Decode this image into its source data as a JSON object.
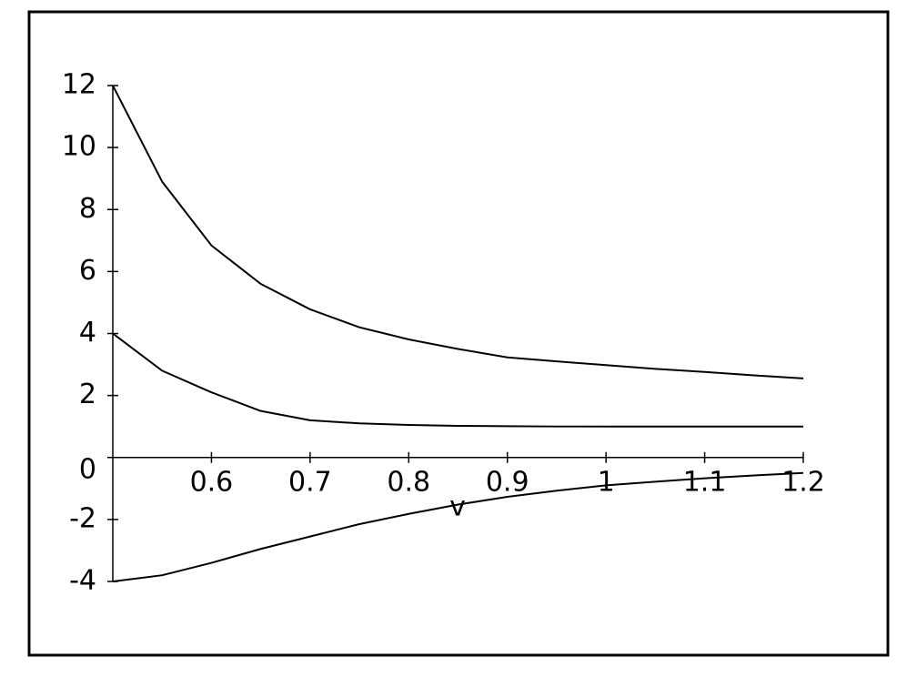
{
  "chart_data": {
    "type": "line",
    "xlabel": "v",
    "x": [
      0.5,
      0.55,
      0.6,
      0.65,
      0.7,
      0.75,
      0.8,
      0.85,
      0.9,
      0.95,
      1.0,
      1.05,
      1.1,
      1.15,
      1.2
    ],
    "series": [
      {
        "color": "#000000",
        "values": [
          12,
          8.9,
          6.84,
          5.6,
          4.78,
          4.2,
          3.81,
          3.5,
          3.23,
          3.1,
          2.98,
          2.86,
          2.76,
          2.65,
          2.55
        ]
      },
      {
        "color": "#000000",
        "values": [
          4,
          2.8,
          2.1,
          1.5,
          1.2,
          1.1,
          1.05,
          1.02,
          1.01,
          1.0,
          1.0,
          1.0,
          1.0,
          1.0,
          1.0
        ]
      },
      {
        "color": "#000000",
        "values": [
          -4,
          -3.8,
          -3.4,
          -2.95,
          -2.55,
          -2.15,
          -1.82,
          -1.52,
          -1.27,
          -1.07,
          -0.9,
          -0.78,
          -0.67,
          -0.58,
          -0.5
        ]
      }
    ],
    "xlim": [
      0.5,
      1.2
    ],
    "ylim": [
      -4,
      12
    ],
    "xticks": [
      0.6,
      0.7,
      0.8,
      0.9,
      1,
      1.1,
      1.2
    ],
    "yticks": [
      -4,
      -2,
      0,
      2,
      4,
      6,
      8,
      10,
      12
    ]
  }
}
